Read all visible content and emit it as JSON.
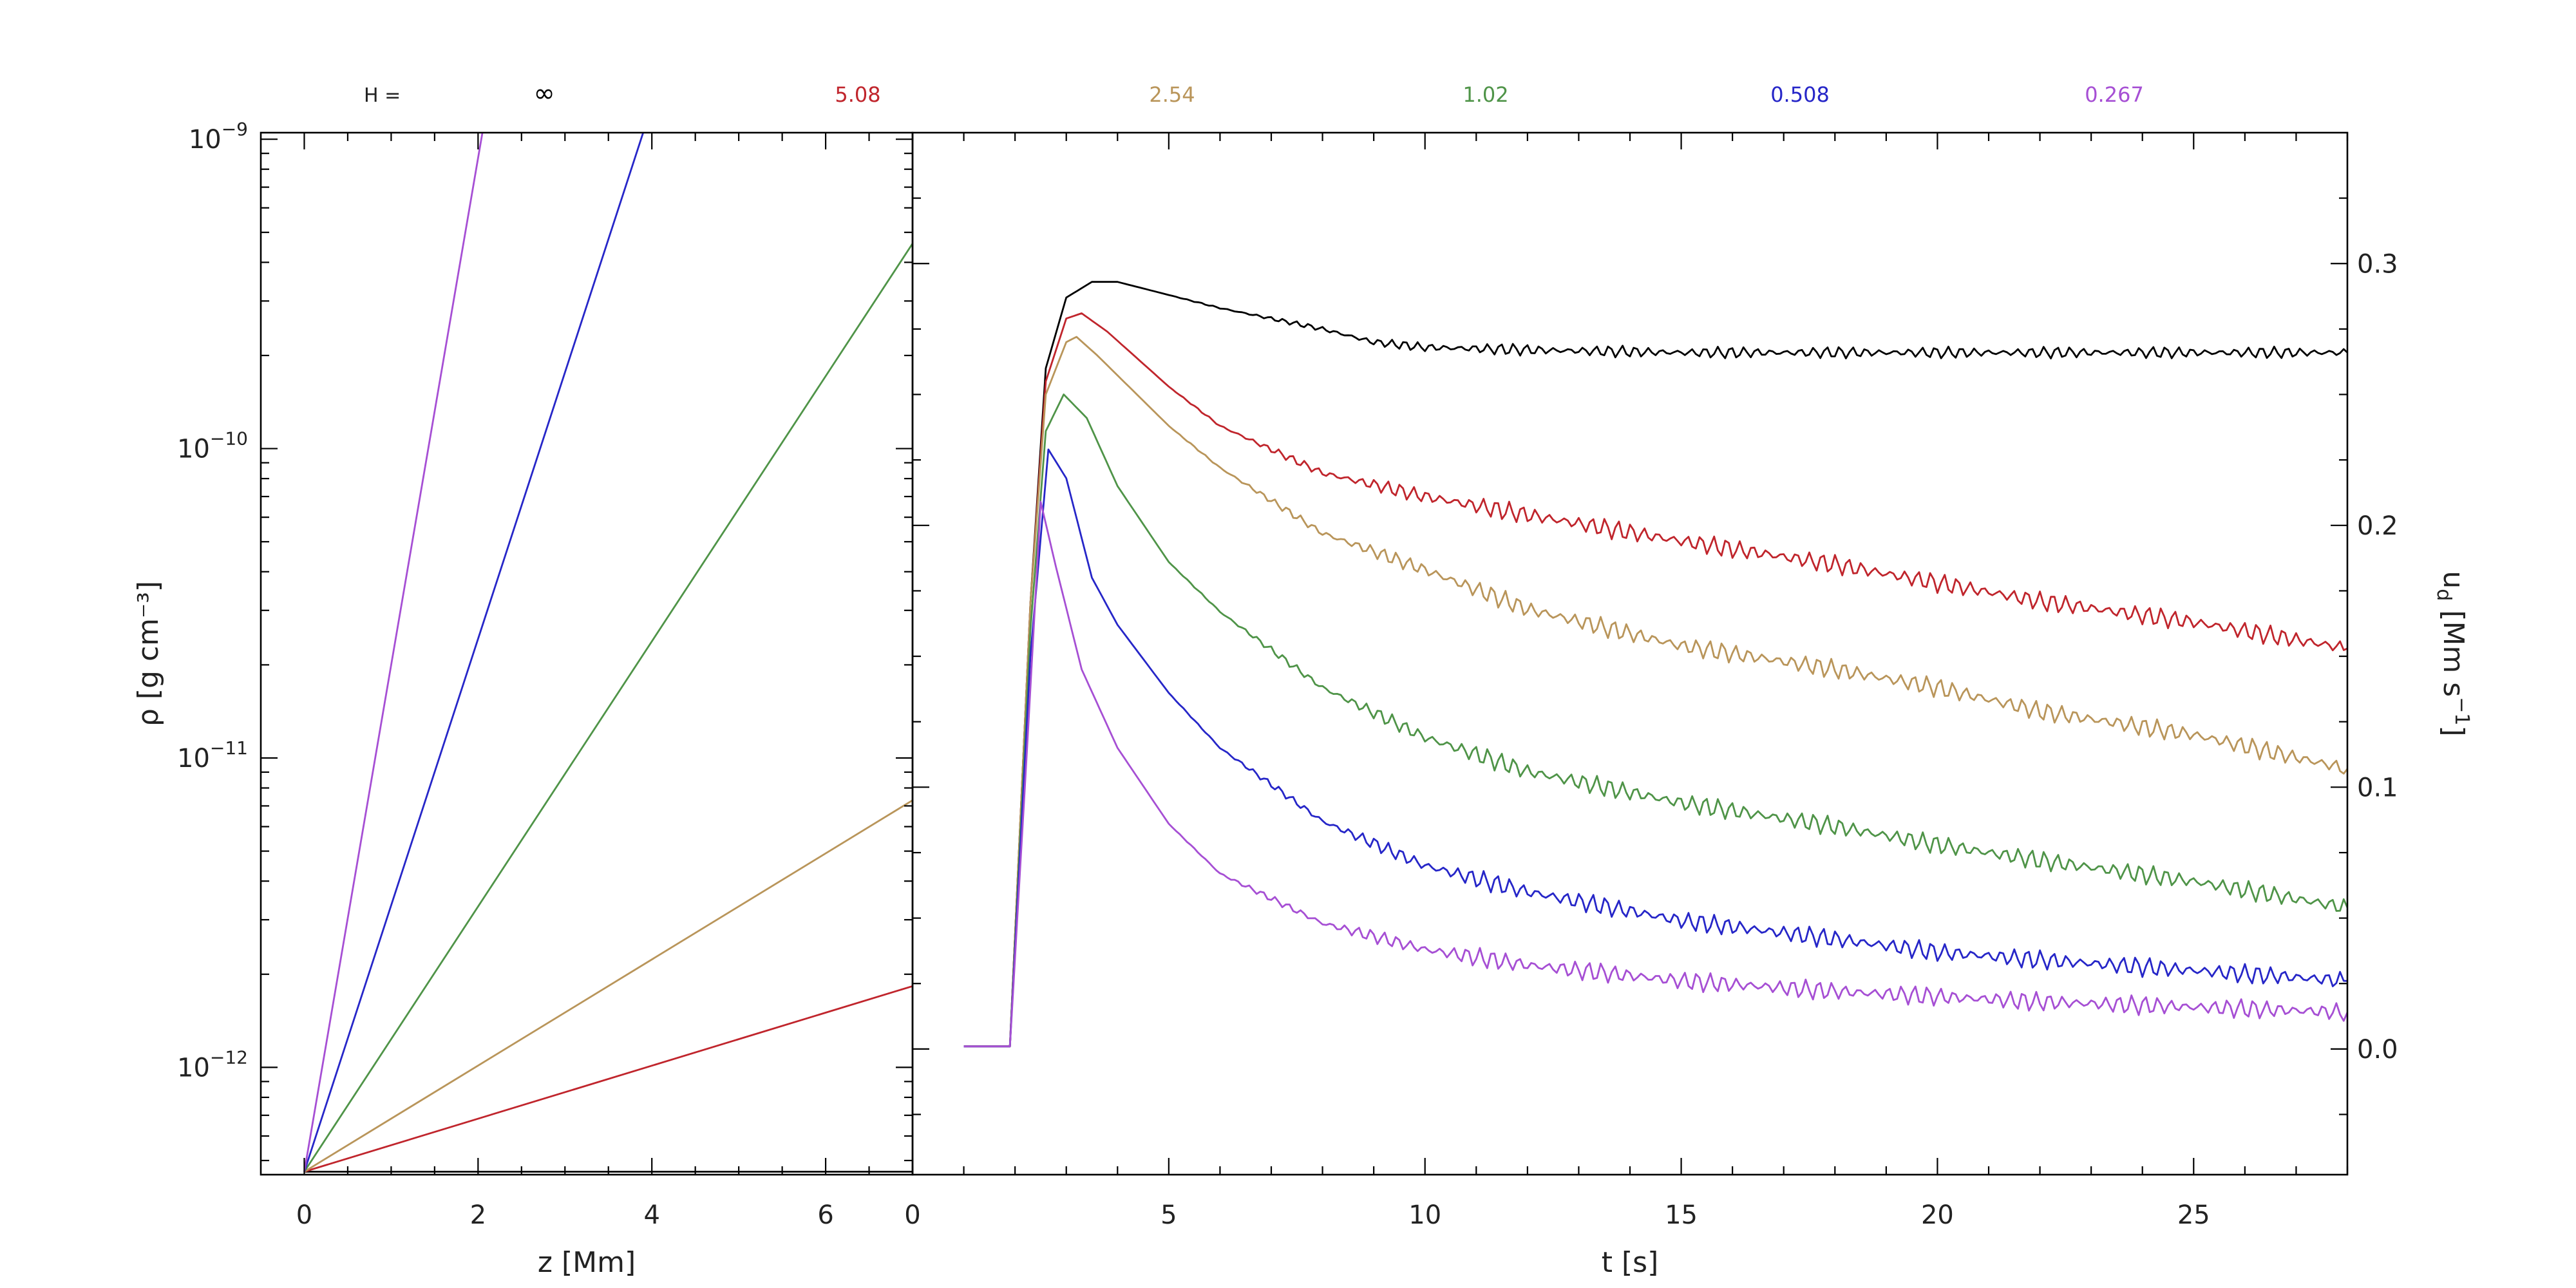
{
  "header": {
    "h_label": "H =",
    "entries": [
      {
        "label": "∞",
        "color": "#000000"
      },
      {
        "label": "5.08",
        "color": "#c0252c"
      },
      {
        "label": "2.54",
        "color": "#b9955a"
      },
      {
        "label": "1.02",
        "color": "#4f9448"
      },
      {
        "label": "0.508",
        "color": "#2626c8"
      },
      {
        "label": "0.267",
        "color": "#a64fd4"
      }
    ]
  },
  "chart_data": [
    {
      "type": "line",
      "xlabel": "z [Mm]",
      "ylabel": "ρ [g cm⁻³]",
      "xlim": [
        -0.5,
        7
      ],
      "ylim": [
        4.5e-13,
        1.05e-09
      ],
      "yscale": "log",
      "xticks": [
        0,
        2,
        4,
        6
      ],
      "yticks": [
        {
          "value": 1e-12,
          "base": "10",
          "exp": "−12"
        },
        {
          "value": 1e-11,
          "base": "10",
          "exp": "−11"
        },
        {
          "value": 1e-10,
          "base": "10",
          "exp": "−10"
        },
        {
          "value": 1e-09,
          "base": "10",
          "exp": "−9"
        }
      ],
      "series": [
        {
          "name": "∞",
          "color": "#000000",
          "x": [
            0,
            7
          ],
          "y": [
            4.6e-13,
            4.6e-13
          ]
        },
        {
          "name": "5.08",
          "color": "#c0252c",
          "x": [
            0,
            7
          ],
          "y": [
            4.6e-13,
            1.83e-12
          ]
        },
        {
          "name": "2.54",
          "color": "#b9955a",
          "x": [
            0,
            7
          ],
          "y": [
            4.6e-13,
            7.3e-12
          ]
        },
        {
          "name": "1.02",
          "color": "#4f9448",
          "x": [
            0,
            7
          ],
          "y": [
            4.6e-13,
            4.6e-10
          ]
        },
        {
          "name": "0.508",
          "color": "#2626c8",
          "x": [
            0,
            3.9
          ],
          "y": [
            4.6e-13,
            1.05e-09
          ]
        },
        {
          "name": "0.267",
          "color": "#a64fd4",
          "x": [
            0,
            2.05
          ],
          "y": [
            4.6e-13,
            1.05e-09
          ]
        }
      ]
    },
    {
      "type": "line",
      "xlabel": "t [s]",
      "ylabel": "u_d [Mm s⁻¹]",
      "ylabel_base": "u",
      "ylabel_sub": "d",
      "ylabel_rest": " [Mm s",
      "ylabel_sup": "−1",
      "ylabel_end": "]",
      "xlim": [
        0,
        28
      ],
      "ylim": [
        -0.048,
        0.35
      ],
      "xticks": [
        0,
        5,
        10,
        15,
        20,
        25
      ],
      "xtick_labels": [
        "0",
        "5",
        "10",
        "15",
        "20",
        "25"
      ],
      "yticks": [
        0.0,
        0.1,
        0.2,
        0.3
      ],
      "ytick_labels": [
        "0.0",
        "0.1",
        "0.2",
        "0.3"
      ],
      "series": [
        {
          "name": "∞",
          "color": "#000000",
          "x": [
            1,
            1.9,
            2.3,
            2.6,
            3,
            3.5,
            4,
            5,
            6,
            7,
            8,
            9,
            10,
            12,
            15,
            18,
            20,
            25,
            28
          ],
          "y": [
            0.001,
            0.001,
            0.17,
            0.26,
            0.287,
            0.293,
            0.293,
            0.288,
            0.283,
            0.279,
            0.275,
            0.27,
            0.268,
            0.267,
            0.266,
            0.266,
            0.266,
            0.266,
            0.266
          ]
        },
        {
          "name": "5.08",
          "color": "#c0252c",
          "x": [
            1,
            1.9,
            2.3,
            2.6,
            3,
            3.3,
            3.8,
            5,
            6,
            8,
            10,
            12,
            15,
            18,
            20,
            22,
            25,
            28
          ],
          "y": [
            0.001,
            0.001,
            0.17,
            0.255,
            0.279,
            0.281,
            0.274,
            0.253,
            0.238,
            0.22,
            0.211,
            0.204,
            0.194,
            0.185,
            0.178,
            0.171,
            0.163,
            0.153
          ]
        },
        {
          "name": "2.54",
          "color": "#b9955a",
          "x": [
            1,
            1.9,
            2.3,
            2.6,
            3,
            3.2,
            3.6,
            5,
            6,
            8,
            10,
            12,
            15,
            18,
            20,
            22,
            25,
            28
          ],
          "y": [
            0.001,
            0.001,
            0.17,
            0.25,
            0.27,
            0.272,
            0.265,
            0.238,
            0.222,
            0.197,
            0.183,
            0.168,
            0.154,
            0.145,
            0.138,
            0.129,
            0.12,
            0.107
          ]
        },
        {
          "name": "1.02",
          "color": "#4f9448",
          "x": [
            1,
            1.9,
            2.3,
            2.6,
            2.95,
            3.4,
            4,
            5,
            6,
            8,
            10,
            12,
            15,
            18,
            20,
            22,
            25,
            28
          ],
          "y": [
            0.001,
            0.001,
            0.16,
            0.236,
            0.25,
            0.241,
            0.215,
            0.186,
            0.167,
            0.138,
            0.119,
            0.106,
            0.094,
            0.085,
            0.078,
            0.072,
            0.064,
            0.054
          ]
        },
        {
          "name": "0.508",
          "color": "#2626c8",
          "x": [
            1,
            1.9,
            2.3,
            2.65,
            3,
            3.5,
            4,
            5,
            6,
            8,
            10,
            12,
            15,
            18,
            20,
            22,
            25,
            28
          ],
          "y": [
            0.001,
            0.001,
            0.15,
            0.229,
            0.218,
            0.18,
            0.162,
            0.136,
            0.115,
            0.087,
            0.07,
            0.06,
            0.049,
            0.042,
            0.037,
            0.034,
            0.03,
            0.026
          ]
        },
        {
          "name": "0.267",
          "color": "#a64fd4",
          "x": [
            1,
            1.9,
            2.25,
            2.5,
            2.8,
            3.3,
            4,
            5,
            6,
            8,
            10,
            12,
            15,
            18,
            20,
            22,
            25,
            28
          ],
          "y": [
            0.001,
            0.001,
            0.12,
            0.209,
            0.184,
            0.145,
            0.115,
            0.086,
            0.067,
            0.048,
            0.038,
            0.032,
            0.026,
            0.022,
            0.02,
            0.018,
            0.016,
            0.014
          ]
        }
      ]
    }
  ]
}
